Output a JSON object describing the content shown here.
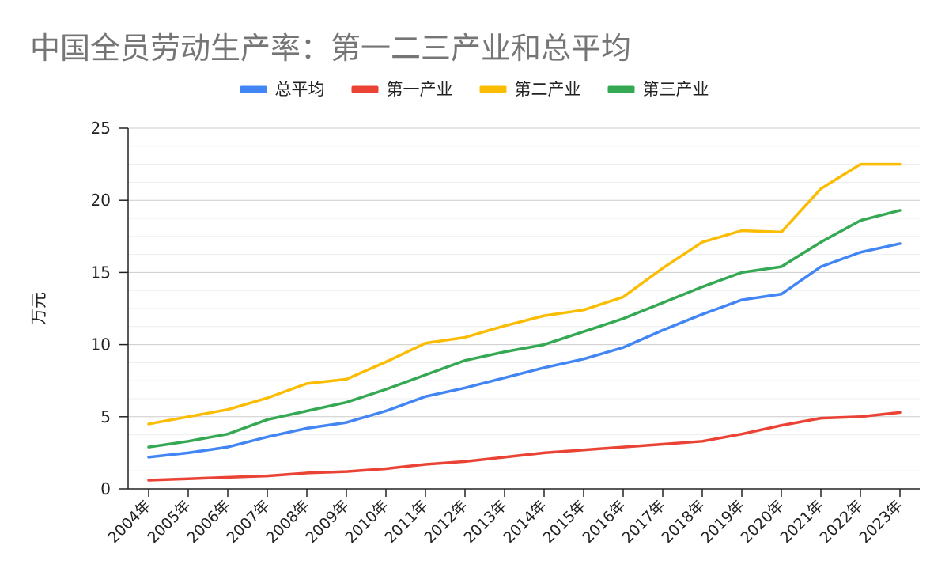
{
  "chart_data": {
    "type": "line",
    "title": "中国全员劳动生产率：第一二三产业和总平均",
    "ylabel": "万元",
    "xlabel": "",
    "ylim": [
      0,
      25
    ],
    "yticks": [
      0,
      5,
      10,
      15,
      20,
      25
    ],
    "grid": true,
    "legend_position": "top-center",
    "categories": [
      "2004年",
      "2005年",
      "2006年",
      "2007年",
      "2008年",
      "2009年",
      "2010年",
      "2011年",
      "2012年",
      "2013年",
      "2014年",
      "2015年",
      "2016年",
      "2017年",
      "2018年",
      "2019年",
      "2020年",
      "2021年",
      "2022年",
      "2023年"
    ],
    "series": [
      {
        "name": "总平均",
        "color": "#4285F4",
        "values": [
          2.2,
          2.5,
          2.9,
          3.6,
          4.2,
          4.6,
          5.4,
          6.4,
          7.0,
          7.7,
          8.4,
          9.0,
          9.8,
          11.0,
          12.1,
          13.1,
          13.5,
          15.4,
          16.4,
          17.0
        ]
      },
      {
        "name": "第一产业",
        "color": "#EA4335",
        "values": [
          0.6,
          0.7,
          0.8,
          0.9,
          1.1,
          1.2,
          1.4,
          1.7,
          1.9,
          2.2,
          2.5,
          2.7,
          2.9,
          3.1,
          3.3,
          3.8,
          4.4,
          4.9,
          5.0,
          5.3
        ]
      },
      {
        "name": "第二产业",
        "color": "#FBBC04",
        "values": [
          4.5,
          5.0,
          5.5,
          6.3,
          7.3,
          7.6,
          8.8,
          10.1,
          10.5,
          11.3,
          12.0,
          12.4,
          13.3,
          15.3,
          17.1,
          17.9,
          17.8,
          20.8,
          22.5,
          22.5
        ]
      },
      {
        "name": "第三产业",
        "color": "#34A853",
        "values": [
          2.9,
          3.3,
          3.8,
          4.8,
          5.4,
          6.0,
          6.9,
          7.9,
          8.9,
          9.5,
          10.0,
          10.9,
          11.8,
          12.9,
          14.0,
          15.0,
          15.4,
          17.1,
          18.6,
          19.3
        ]
      }
    ]
  }
}
